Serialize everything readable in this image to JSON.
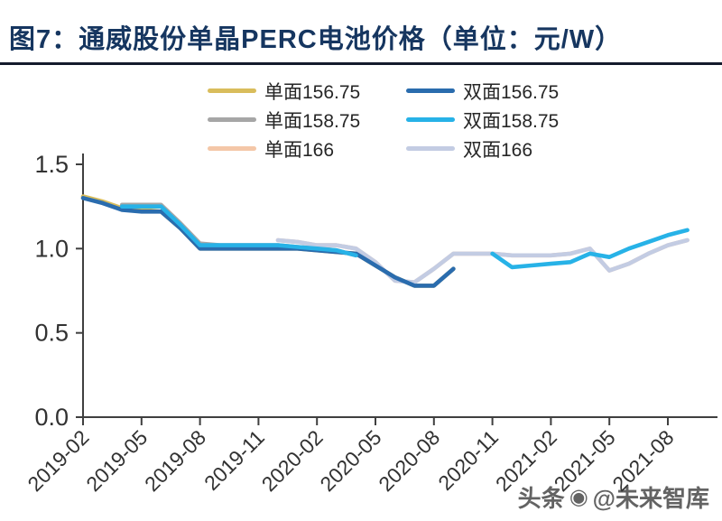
{
  "title": "图7：通威股份单晶PERC电池价格（单位：元/W）",
  "watermark": {
    "prefix": "头条",
    "handle": "@未来智库"
  },
  "chart_data": {
    "type": "line",
    "title": "图7：通威股份单晶PERC电池价格（单位：元/W）",
    "unit": "元/W",
    "ylim": [
      0,
      1.5
    ],
    "grid": false,
    "legend_position": "top",
    "x": [
      "2019-02",
      "2019-03",
      "2019-04",
      "2019-05",
      "2019-06",
      "2019-07",
      "2019-08",
      "2019-09",
      "2019-10",
      "2019-11",
      "2019-12",
      "2020-01",
      "2020-02",
      "2020-03",
      "2020-04",
      "2020-05",
      "2020-06",
      "2020-07",
      "2020-08",
      "2020-09",
      "2020-10",
      "2020-11",
      "2020-12",
      "2021-01",
      "2021-02",
      "2021-03",
      "2021-04",
      "2021-05",
      "2021-06",
      "2021-07",
      "2021-08",
      "2021-09"
    ],
    "x_tick_labels": [
      "2019-02",
      "2019-05",
      "2019-08",
      "2019-11",
      "2020-02",
      "2020-05",
      "2020-08",
      "2020-11",
      "2021-02",
      "2021-05",
      "2021-08"
    ],
    "y_ticks": [
      0,
      0.5,
      1.0,
      1.5
    ],
    "y_tick_labels": [
      "0.0",
      "0.5",
      "1.0",
      "1.5"
    ],
    "legend_columns": [
      [
        "单面156.75",
        "单面158.75",
        "单面166"
      ],
      [
        "双面156.75",
        "双面158.75",
        "双面166"
      ]
    ],
    "series": [
      {
        "name": "单面156.75",
        "color": "#d9bd5c",
        "values": [
          1.31,
          1.28,
          1.24,
          1.23,
          1.22,
          1.12,
          1.0,
          1.0,
          1.0,
          1.0,
          1.0,
          1.0,
          0.99,
          0.98,
          0.97,
          0.9,
          0.83,
          0.78,
          0.78,
          0.88,
          null,
          null,
          null,
          null,
          null,
          null,
          null,
          null,
          null,
          null,
          null,
          null
        ]
      },
      {
        "name": "单面158.75",
        "color": "#a6a6a6",
        "values": [
          null,
          null,
          1.26,
          1.26,
          1.26,
          1.15,
          1.03,
          1.02,
          1.02,
          1.02,
          1.02,
          1.01,
          1.0,
          0.99,
          0.96,
          null,
          null,
          null,
          null,
          null,
          null,
          null,
          null,
          null,
          null,
          null,
          null,
          null,
          null,
          null,
          null,
          null
        ]
      },
      {
        "name": "单面166",
        "color": "#f4c7a8",
        "values": [
          null,
          null,
          null,
          null,
          null,
          null,
          null,
          null,
          null,
          null,
          1.05,
          1.04,
          1.02,
          1.02,
          1.0,
          0.92,
          0.81,
          0.8,
          0.88,
          0.97,
          0.97,
          0.97,
          0.96,
          0.96,
          0.96,
          0.97,
          1.0,
          0.87,
          0.91,
          0.97,
          1.02,
          1.05
        ]
      },
      {
        "name": "双面166",
        "color": "#c3cce3",
        "values": [
          null,
          null,
          null,
          null,
          null,
          null,
          null,
          null,
          null,
          null,
          1.05,
          1.04,
          1.02,
          1.02,
          1.0,
          0.92,
          0.81,
          0.8,
          0.88,
          0.97,
          0.97,
          0.97,
          0.96,
          0.96,
          0.96,
          0.97,
          1.0,
          0.87,
          0.91,
          0.97,
          1.02,
          1.05
        ]
      },
      {
        "name": "双面156.75",
        "color": "#2a6cae",
        "values": [
          1.3,
          1.27,
          1.23,
          1.22,
          1.22,
          1.12,
          1.0,
          1.0,
          1.0,
          1.0,
          1.0,
          1.0,
          0.99,
          0.98,
          0.97,
          0.9,
          0.83,
          0.78,
          0.78,
          0.88,
          null,
          null,
          null,
          null,
          null,
          null,
          null,
          null,
          null,
          null,
          null,
          null
        ]
      },
      {
        "name": "双面158.75",
        "color": "#27b2e7",
        "values": [
          null,
          null,
          1.25,
          1.25,
          1.25,
          1.14,
          1.02,
          1.02,
          1.02,
          1.02,
          1.02,
          1.01,
          1.0,
          0.99,
          0.96,
          null,
          null,
          null,
          null,
          null,
          null,
          0.97,
          0.89,
          0.9,
          0.91,
          0.92,
          0.97,
          0.95,
          1.0,
          1.04,
          1.08,
          1.11
        ]
      }
    ]
  }
}
